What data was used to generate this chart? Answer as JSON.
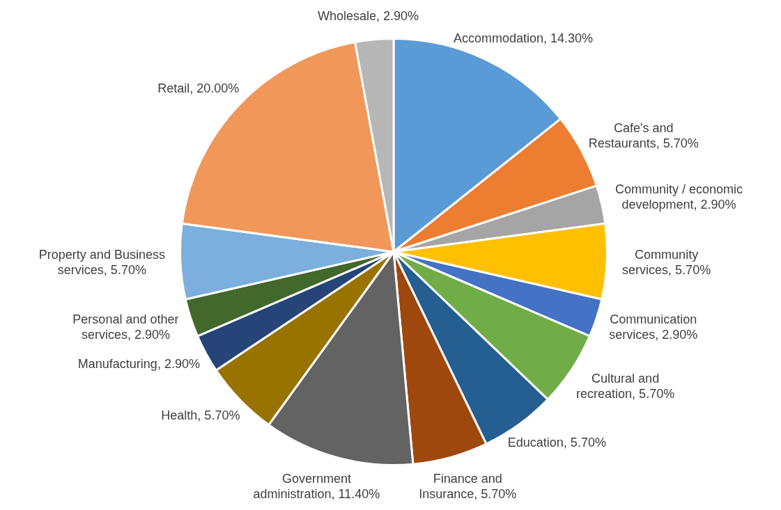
{
  "chart_data": {
    "type": "pie",
    "categories": [
      "Accommodation",
      "Cafe's and Restaurants",
      "Community / economic development",
      "Community services",
      "Communication services",
      "Cultural and recreation",
      "Education",
      "Finance and Insurance",
      "Government administration",
      "Health",
      "Manufacturing",
      "Personal and other services",
      "Property and Business services",
      "Retail",
      "Wholesale"
    ],
    "values": [
      14.3,
      5.7,
      2.9,
      5.7,
      2.9,
      5.7,
      5.7,
      5.7,
      11.4,
      5.7,
      2.9,
      2.9,
      5.7,
      20.0,
      2.9
    ],
    "value_labels": [
      "14.30%",
      "5.70%",
      "2.90%",
      "5.70%",
      "2.90%",
      "5.70%",
      "5.70%",
      "5.70%",
      "11.40%",
      "5.70%",
      "2.90%",
      "2.90%",
      "5.70%",
      "20.00%",
      "2.90%"
    ],
    "colors": [
      "#5b9bd5",
      "#ed7d31",
      "#a5a5a5",
      "#ffc000",
      "#4472c4",
      "#70ad47",
      "#255e91",
      "#9e480e",
      "#636363",
      "#997300",
      "#264478",
      "#43682b",
      "#7cafdd",
      "#f1975a",
      "#b7b7b7"
    ],
    "legend": false
  }
}
